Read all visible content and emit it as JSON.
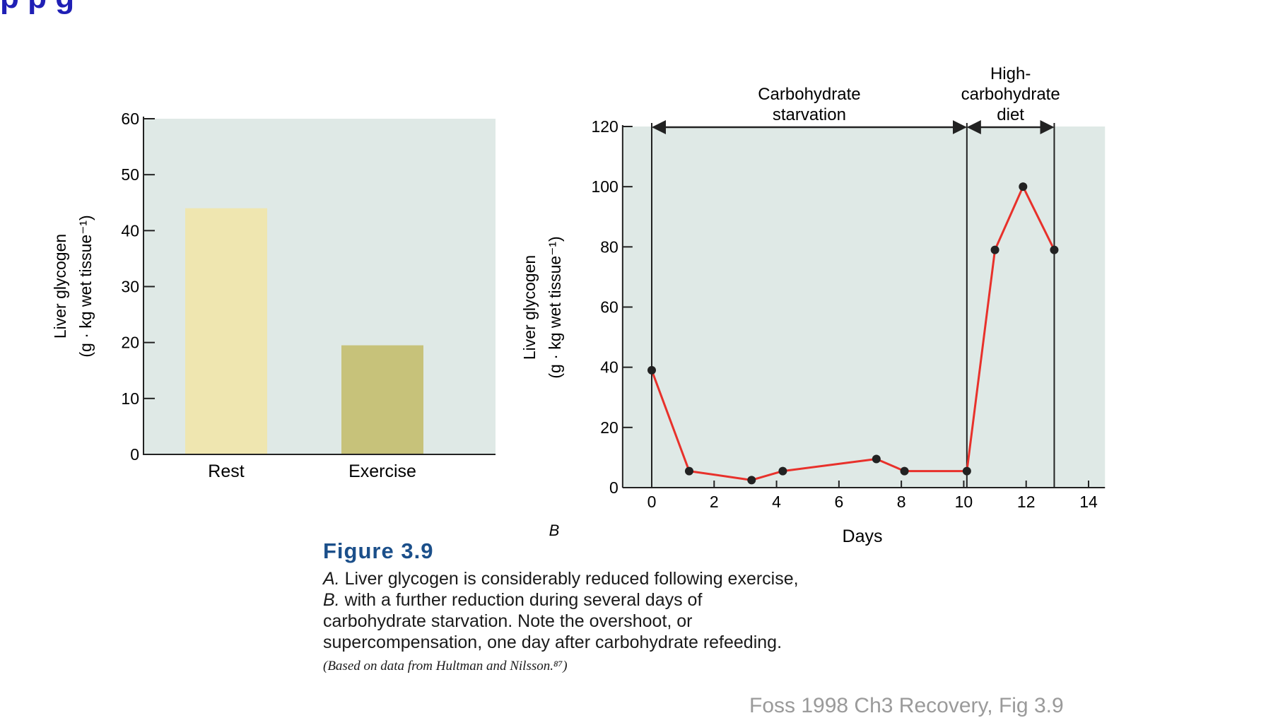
{
  "page": {
    "title_fragment": "p        p        g",
    "footer": "Foss 1998 Ch3 Recovery, Fig 3.9"
  },
  "colors": {
    "panel_bg": "#dfe9e6",
    "rest_bar": "#efe6b0",
    "exercise_bar": "#c7c27a",
    "line": "#e8312b",
    "point": "#222222",
    "title_blue": "#1f1fb5",
    "figure_title": "#1b4f8a"
  },
  "chart_data": [
    {
      "type": "bar",
      "panel": "A",
      "categories": [
        "Rest",
        "Exercise"
      ],
      "values": [
        44,
        19.5
      ],
      "ylabel_line1": "Liver glycogen",
      "ylabel_line2": "(g · kg wet tissue⁻¹)",
      "ylim": [
        0,
        60
      ],
      "yticks": [
        0,
        10,
        20,
        30,
        40,
        50,
        60
      ]
    },
    {
      "type": "line",
      "panel": "B",
      "panel_label": "B",
      "x": [
        0,
        1.2,
        3.2,
        4.2,
        7.2,
        8.1,
        10.1,
        11,
        11.9,
        12.9
      ],
      "y": [
        39,
        5.5,
        2.5,
        5.5,
        9.5,
        5.5,
        5.5,
        79,
        100,
        79
      ],
      "xlabel": "Days",
      "ylabel_line1": "Liver glycogen",
      "ylabel_line2": "(g · kg wet tissue⁻¹)",
      "xlim": [
        -1,
        14.3
      ],
      "ylim": [
        0,
        120
      ],
      "xticks": [
        0,
        2,
        4,
        6,
        8,
        10,
        12,
        14
      ],
      "yticks": [
        0,
        20,
        40,
        60,
        80,
        100,
        120
      ],
      "phases": [
        {
          "label_line1": "Carbohydrate",
          "label_line2": "starvation",
          "x_start": 0,
          "x_end": 10.1
        },
        {
          "label_line1": "High-",
          "label_line2": "carbohydrate",
          "label_line3": "diet",
          "x_start": 10.1,
          "x_end": 12.9
        }
      ]
    }
  ],
  "caption": {
    "figure_title": "Figure 3.9",
    "line1_label": "A.",
    "line1_text": " Liver glycogen is considerably reduced following exercise,",
    "line2_label": "B.",
    "line2_text": " with a further reduction during several days of",
    "line3": "carbohydrate starvation. Note the overshoot, or",
    "line4": "supercompensation, one day after carbohydrate refeeding.",
    "credit": "(Based on data from Hultman and Nilsson.⁸⁷)"
  }
}
